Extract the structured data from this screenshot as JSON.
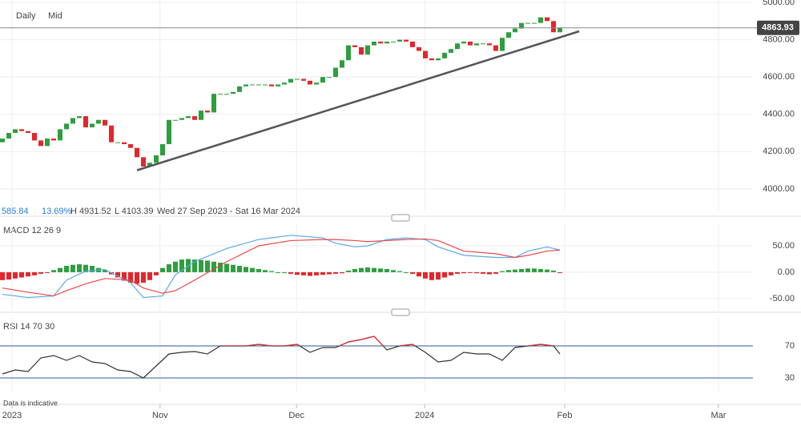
{
  "chart_data": [
    {
      "type": "candlestick",
      "interval": "Daily",
      "price_type": "Mid",
      "open": [
        4250,
        4270,
        4300,
        4320,
        4310,
        4300,
        4260,
        4230,
        4270,
        4260,
        4320,
        4350,
        4380,
        4390,
        4330,
        4350,
        4370,
        4340,
        4250,
        4250,
        4240,
        4220,
        4170,
        4120,
        4140,
        4180,
        4240,
        4370,
        4370,
        4380,
        4390,
        4370,
        4420,
        4410,
        4510,
        4510,
        4510,
        4520,
        4550,
        4560,
        4560,
        4560,
        4560,
        4550,
        4560,
        4570,
        4590,
        4590,
        4580,
        4560,
        4570,
        4600,
        4600,
        4650,
        4690,
        4770,
        4760,
        4720,
        4770,
        4790,
        4780,
        4790,
        4790,
        4800,
        4790,
        4760,
        4740,
        4700,
        4690,
        4700,
        4730,
        4750,
        4780,
        4790,
        4770,
        4780,
        4780,
        4770,
        4740,
        4810,
        4840,
        4860,
        4890,
        4890,
        4890,
        4920,
        4900,
        4840
      ],
      "close": [
        4270,
        4300,
        4320,
        4310,
        4300,
        4260,
        4230,
        4270,
        4260,
        4320,
        4350,
        4380,
        4390,
        4330,
        4350,
        4370,
        4340,
        4250,
        4250,
        4240,
        4220,
        4170,
        4120,
        4140,
        4180,
        4240,
        4370,
        4370,
        4380,
        4390,
        4370,
        4420,
        4410,
        4510,
        4510,
        4510,
        4520,
        4550,
        4560,
        4560,
        4560,
        4560,
        4550,
        4560,
        4570,
        4590,
        4590,
        4580,
        4560,
        4570,
        4600,
        4600,
        4650,
        4690,
        4770,
        4760,
        4720,
        4770,
        4790,
        4780,
        4790,
        4790,
        4800,
        4790,
        4760,
        4740,
        4700,
        4690,
        4700,
        4730,
        4750,
        4780,
        4790,
        4770,
        4780,
        4780,
        4770,
        4740,
        4810,
        4840,
        4860,
        4890,
        4890,
        4890,
        4920,
        4900,
        4840,
        4863.93
      ],
      "up_color": "#2e9e3e",
      "down_color": "#e3262b",
      "last_price": 4863.93,
      "change": 585.84,
      "change_pct": {
        "value": 13.69,
        "label": "13.69%"
      },
      "high": {
        "value": 4931.52,
        "label": "H 4931.52"
      },
      "low": {
        "value": 4103.39,
        "label": "L 4103.39"
      },
      "date_range": "Wed 27 Sep 2023 - Sat 16 Mar 2024",
      "trendline": {
        "x": [
          21,
          90
        ],
        "values": [
          4100,
          4845
        ]
      },
      "xlim": [
        -0.375,
        124.625
      ],
      "xticks": [
        {
          "value": 1.5,
          "label": "2023"
        },
        {
          "value": 24.6,
          "label": "Nov"
        },
        {
          "value": 45.9,
          "label": "Dec"
        },
        {
          "value": 65.9,
          "label": "2024"
        },
        {
          "value": 87.75,
          "label": "Feb"
        },
        {
          "value": 111.75,
          "label": "Mar"
        }
      ],
      "ylim": [
        3888,
        5013
      ],
      "yticks": [
        {
          "value": 4000,
          "label": "4000.00"
        },
        {
          "value": 4200,
          "label": "4200.00"
        },
        {
          "value": 4400,
          "label": "4400.00"
        },
        {
          "value": 4600,
          "label": "4600.00"
        },
        {
          "value": 4800,
          "label": "4800.00"
        },
        {
          "value": 5000,
          "label": "5000.00"
        }
      ]
    },
    {
      "type": "macd",
      "title": "MACD 12 26 9",
      "x": [
        0,
        4,
        8,
        10,
        13,
        16,
        20,
        22,
        25,
        27,
        30,
        35,
        40,
        45,
        50,
        52,
        55,
        57,
        60,
        63,
        66,
        68,
        72,
        77,
        80,
        82,
        85,
        87
      ],
      "series": [
        {
          "name": "MACD",
          "color": "#5aa9e6",
          "values": [
            -42,
            -48,
            -45,
            -15,
            2,
            5,
            -20,
            -48,
            -45,
            -5,
            20,
            45,
            62,
            70,
            65,
            55,
            48,
            50,
            62,
            65,
            62,
            48,
            32,
            28,
            28,
            40,
            48,
            42
          ]
        },
        {
          "name": "Signal",
          "color": "#e8474a",
          "values": [
            -30,
            -38,
            -45,
            -35,
            -22,
            -12,
            -15,
            -30,
            -40,
            -35,
            -15,
            20,
            50,
            60,
            62,
            62,
            60,
            58,
            60,
            62,
            63,
            60,
            40,
            35,
            28,
            32,
            40,
            42
          ]
        }
      ],
      "histogram": [
        -15,
        -14,
        -12,
        -10,
        -8,
        -6,
        -3,
        -1,
        4,
        8,
        12,
        14,
        15,
        14,
        12,
        8,
        4,
        -4,
        -10,
        -16,
        -20,
        -22,
        -20,
        -15,
        -6,
        8,
        15,
        20,
        24,
        25,
        24,
        23,
        22,
        20,
        18,
        16,
        14,
        12,
        10,
        8,
        6,
        4,
        2,
        0,
        0,
        -3,
        -5,
        -6,
        -7,
        -6,
        -5,
        -4,
        -3,
        -2,
        3,
        6,
        8,
        9,
        8,
        7,
        6,
        4,
        2,
        0,
        -3,
        -8,
        -12,
        -15,
        -14,
        -10,
        -6,
        -3,
        -2,
        -1,
        -2,
        -3,
        -4,
        -3,
        2,
        4,
        5,
        6,
        7,
        7,
        6,
        5,
        3,
        -1
      ],
      "ylim": [
        -73,
        91
      ],
      "yticks": [
        {
          "value": 50,
          "label": "50.00"
        },
        {
          "value": 0,
          "label": "0.00"
        },
        {
          "value": -50,
          "label": "-50.00"
        }
      ]
    },
    {
      "type": "rsi",
      "title": "RSI 14 70 30",
      "x": [
        0,
        2,
        4,
        6,
        8,
        10,
        12,
        14,
        16,
        18,
        20,
        22,
        24,
        26,
        28,
        30,
        32,
        34,
        36,
        38,
        40,
        42,
        44,
        46,
        48,
        50,
        52,
        54,
        56,
        58,
        60,
        62,
        64,
        66,
        68,
        70,
        72,
        74,
        76,
        78,
        80,
        82,
        84,
        86,
        87
      ],
      "values": [
        35,
        40,
        38,
        55,
        58,
        52,
        58,
        50,
        48,
        40,
        38,
        30,
        45,
        60,
        62,
        63,
        60,
        70,
        70,
        70,
        72,
        70,
        70,
        72,
        62,
        68,
        68,
        75,
        78,
        82,
        65,
        70,
        72,
        62,
        50,
        52,
        62,
        60,
        60,
        52,
        68,
        70,
        72,
        70,
        60
      ],
      "color": "#333333",
      "overbought_color": "#e3262b",
      "ylim": [
        12,
        104
      ],
      "yticks": [
        70,
        30
      ]
    }
  ],
  "note": "Data is indicative"
}
